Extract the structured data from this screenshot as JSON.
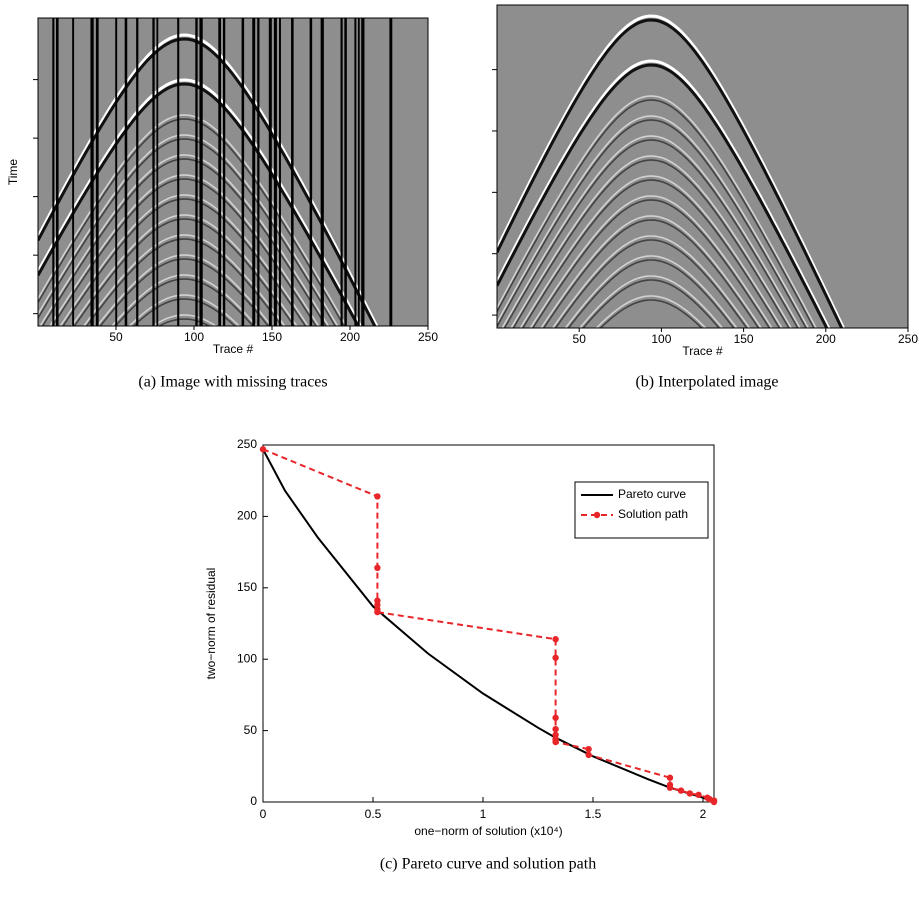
{
  "chart_data": [
    {
      "type": "image",
      "ylabel": "Time",
      "xlabel": "Trace #",
      "caption": "(a) Image with missing traces",
      "xlim": [
        0,
        250
      ],
      "xticks": [
        50,
        100,
        150,
        200,
        250
      ]
    },
    {
      "type": "image",
      "xlabel": "Trace #",
      "caption": "(b) Interpolated image",
      "xlim": [
        0,
        250
      ],
      "xticks": [
        50,
        100,
        150,
        200,
        250
      ]
    },
    {
      "type": "line",
      "xlabel": "one−norm of solution (x10⁴)",
      "ylabel": "two−norm of residual",
      "caption": "(c) Pareto curve and solution path",
      "xlim": [
        0,
        2.05
      ],
      "xticks": [
        0,
        0.5,
        1,
        1.5,
        2
      ],
      "ylim": [
        0,
        250
      ],
      "yticks": [
        0,
        50,
        100,
        150,
        200,
        250
      ],
      "legend": "upper right",
      "series": [
        {
          "name": "Pareto curve",
          "color": "#000000",
          "line_style": "solid",
          "x": [
            0,
            0.1,
            0.25,
            0.5,
            0.75,
            1,
            1.25,
            1.33,
            1.5,
            1.75,
            1.85,
            2,
            2.05
          ],
          "values": [
            247,
            218,
            185,
            137,
            104,
            76,
            52,
            45,
            32,
            16,
            10,
            3,
            0
          ]
        },
        {
          "name": "Solution path",
          "color": "#e8262a",
          "line_style": "dashed",
          "marker": "circle",
          "x": [
            0,
            0.52,
            0.52,
            0.52,
            0.52,
            0.52,
            0.52,
            1.33,
            1.33,
            1.33,
            1.33,
            1.33,
            1.33,
            1.33,
            1.48,
            1.48,
            1.85,
            1.85,
            1.85,
            1.9,
            1.94,
            1.98,
            2.02,
            2.03,
            2.05,
            2.05
          ],
          "values": [
            247,
            214,
            164,
            141,
            138,
            135,
            133,
            114,
            101,
            59,
            51,
            47,
            44,
            42,
            37,
            33,
            17,
            12,
            10,
            8,
            6,
            5,
            3,
            2,
            1,
            0
          ]
        }
      ]
    }
  ]
}
